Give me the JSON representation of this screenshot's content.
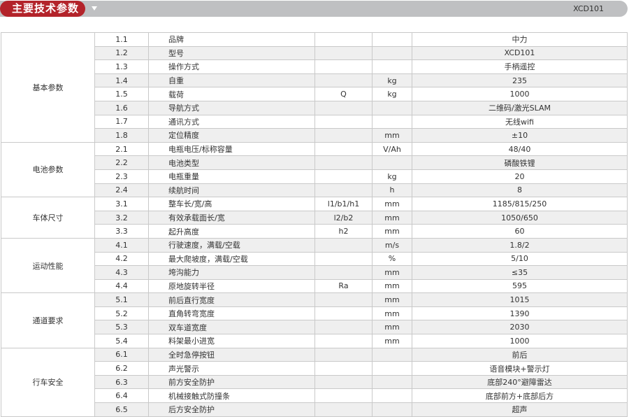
{
  "header": {
    "title": "主要技术参数",
    "model": "XCD101",
    "dropdown_icon": "triangle-down-icon",
    "accent": "#b3232a"
  },
  "groups": [
    {
      "name": "基本参数",
      "rows": [
        [
          "1.1",
          "品牌",
          "",
          "",
          "中力"
        ],
        [
          "1.2",
          "型号",
          "",
          "",
          "XCD101"
        ],
        [
          "1.3",
          "操作方式",
          "",
          "",
          "手柄遥控"
        ],
        [
          "1.4",
          "自重",
          "",
          "kg",
          "235"
        ],
        [
          "1.5",
          "载荷",
          "Q",
          "kg",
          "1000"
        ],
        [
          "1.6",
          "导航方式",
          "",
          "",
          "二维码/激光SLAM"
        ],
        [
          "1.7",
          "通讯方式",
          "",
          "",
          "无线wifi"
        ],
        [
          "1.8",
          "定位精度",
          "",
          "mm",
          "±10"
        ]
      ]
    },
    {
      "name": "电池参数",
      "rows": [
        [
          "2.1",
          "电瓶电压/标称容量",
          "",
          "V/Ah",
          "48/40"
        ],
        [
          "2.2",
          "电池类型",
          "",
          "",
          "磷酸铁锂"
        ],
        [
          "2.3",
          "电瓶重量",
          "",
          "kg",
          "20"
        ],
        [
          "2.4",
          "续航时间",
          "",
          "h",
          "8"
        ]
      ]
    },
    {
      "name": "车体尺寸",
      "rows": [
        [
          "3.1",
          "整车长/宽/高",
          "l1/b1/h1",
          "mm",
          "1185/815/250"
        ],
        [
          "3.2",
          "有效承载面长/宽",
          "l2/b2",
          "mm",
          "1050/650"
        ],
        [
          "3.3",
          "起升高度",
          "h2",
          "mm",
          "60"
        ]
      ]
    },
    {
      "name": "运动性能",
      "rows": [
        [
          "4.1",
          "行驶速度，满载/空载",
          "",
          "m/s",
          "1.8/2"
        ],
        [
          "4.2",
          "最大爬坡度，满载/空载",
          "",
          "%",
          "5/10"
        ],
        [
          "4.3",
          "垮沟能力",
          "",
          "mm",
          "≤35"
        ],
        [
          "4.4",
          "原地旋转半径",
          "Ra",
          "mm",
          "595"
        ]
      ]
    },
    {
      "name": "通道要求",
      "rows": [
        [
          "5.1",
          "前后直行宽度",
          "",
          "mm",
          "1015"
        ],
        [
          "5.2",
          "直角转弯宽度",
          "",
          "mm",
          "1390"
        ],
        [
          "5.3",
          "双车道宽度",
          "",
          "mm",
          "2030"
        ],
        [
          "5.4",
          "料架最小进宽",
          "",
          "mm",
          "1000"
        ]
      ]
    },
    {
      "name": "行车安全",
      "rows": [
        [
          "6.1",
          "全时急停按钮",
          "",
          "",
          "前后"
        ],
        [
          "6.2",
          "声光警示",
          "",
          "",
          "语音模块+警示灯"
        ],
        [
          "6.3",
          "前方安全防护",
          "",
          "",
          "底部240°避障雷达"
        ],
        [
          "6.4",
          "机械接触式防撞条",
          "",
          "",
          "底部前方+底部后方"
        ],
        [
          "6.5",
          "后方安全防护",
          "",
          "",
          "超声"
        ]
      ]
    }
  ]
}
